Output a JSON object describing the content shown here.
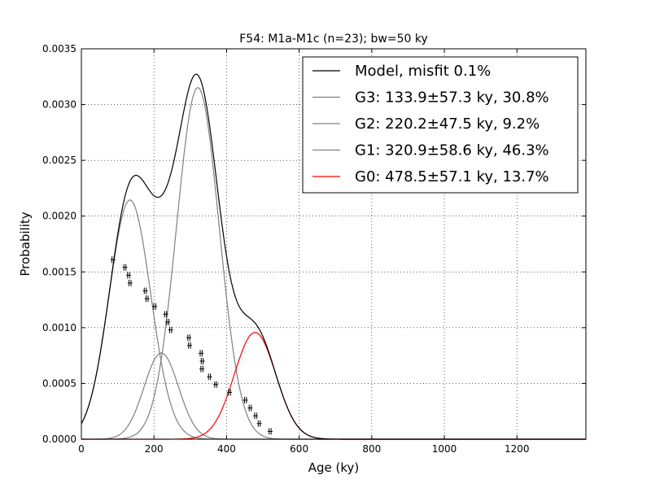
{
  "chart_data": {
    "type": "line",
    "title": "F54: M1a-M1c (n=23); bw=50 ky",
    "xlabel": "Age (ky)",
    "ylabel": "Probability",
    "xlim": [
      0,
      1390
    ],
    "ylim": [
      0,
      0.0035
    ],
    "xticks": [
      0,
      200,
      400,
      600,
      800,
      1000,
      1200
    ],
    "xtick_labels": [
      "0",
      "200",
      "400",
      "600",
      "800",
      "1000",
      "1200"
    ],
    "yticks": [
      0,
      0.0005,
      0.001,
      0.0015,
      0.002,
      0.0025,
      0.003,
      0.0035
    ],
    "ytick_labels": [
      "0.0000",
      "0.0005",
      "0.0010",
      "0.0015",
      "0.0020",
      "0.0025",
      "0.0030",
      "0.0035"
    ],
    "grid": true,
    "legend_position": "top-right",
    "colors": {
      "model": "#000000",
      "gaussian": "#808080",
      "highlight": "#ff0000"
    },
    "model": {
      "name": "Model, misfit 0.1%"
    },
    "components": [
      {
        "name": "G3: 133.9±57.3 ky, 30.8%",
        "mean": 133.9,
        "sd": 57.3,
        "weight": 0.308,
        "color": "#808080"
      },
      {
        "name": "G2: 220.2±47.5 ky, 9.2%",
        "mean": 220.2,
        "sd": 47.5,
        "weight": 0.092,
        "color": "#808080"
      },
      {
        "name": "G1: 320.9±58.6 ky, 46.3%",
        "mean": 320.9,
        "sd": 58.6,
        "weight": 0.463,
        "color": "#808080"
      },
      {
        "name": "G0: 478.5±57.1 ky, 13.7%",
        "mean": 478.5,
        "sd": 57.1,
        "weight": 0.137,
        "color": "#ff0000"
      }
    ],
    "samples": [
      {
        "x": 87,
        "y": 0.00161
      },
      {
        "x": 120,
        "y": 0.00154
      },
      {
        "x": 130,
        "y": 0.00147
      },
      {
        "x": 134,
        "y": 0.0014
      },
      {
        "x": 176,
        "y": 0.00133
      },
      {
        "x": 181,
        "y": 0.00126
      },
      {
        "x": 202,
        "y": 0.00119
      },
      {
        "x": 232,
        "y": 0.00112
      },
      {
        "x": 238,
        "y": 0.00105
      },
      {
        "x": 246,
        "y": 0.00098
      },
      {
        "x": 296,
        "y": 0.00091
      },
      {
        "x": 298,
        "y": 0.00084
      },
      {
        "x": 330,
        "y": 0.00077
      },
      {
        "x": 333,
        "y": 0.0007
      },
      {
        "x": 332,
        "y": 0.00063
      },
      {
        "x": 353,
        "y": 0.00056
      },
      {
        "x": 370,
        "y": 0.00049
      },
      {
        "x": 408,
        "y": 0.00042
      },
      {
        "x": 452,
        "y": 0.00035
      },
      {
        "x": 465,
        "y": 0.00028
      },
      {
        "x": 480,
        "y": 0.00021
      },
      {
        "x": 490,
        "y": 0.00014
      },
      {
        "x": 520,
        "y": 7e-05
      }
    ]
  }
}
